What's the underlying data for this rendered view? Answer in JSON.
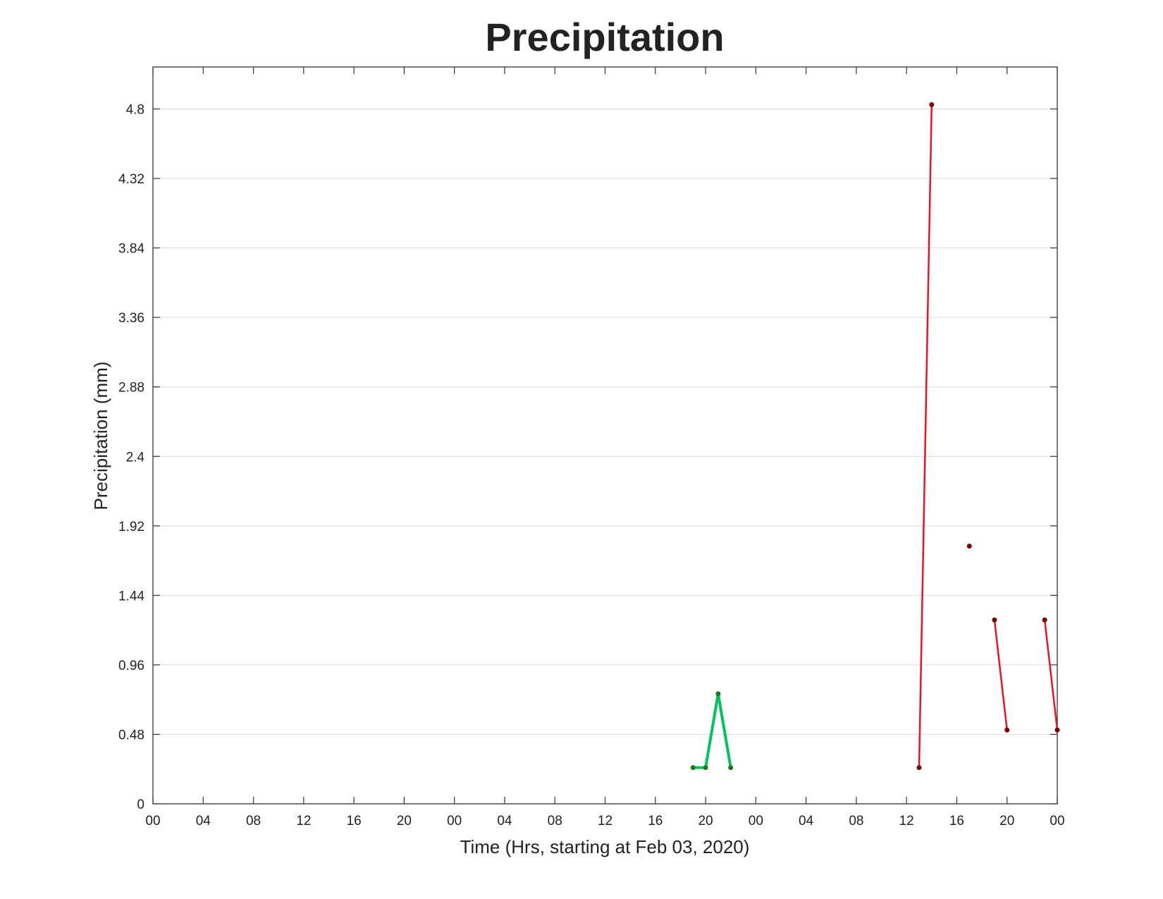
{
  "chart_data": {
    "type": "line",
    "title": "Precipitation",
    "xlabel": "Time (Hrs, starting at Feb 03, 2020)",
    "ylabel": "Precipitation (mm)",
    "xlim": [
      0,
      72
    ],
    "ylim": [
      0,
      5.09
    ],
    "xticks": [
      {
        "value": 0,
        "label": "00"
      },
      {
        "value": 4,
        "label": "04"
      },
      {
        "value": 8,
        "label": "08"
      },
      {
        "value": 12,
        "label": "12"
      },
      {
        "value": 16,
        "label": "16"
      },
      {
        "value": 20,
        "label": "20"
      },
      {
        "value": 24,
        "label": "00"
      },
      {
        "value": 28,
        "label": "04"
      },
      {
        "value": 32,
        "label": "08"
      },
      {
        "value": 36,
        "label": "12"
      },
      {
        "value": 40,
        "label": "16"
      },
      {
        "value": 44,
        "label": "20"
      },
      {
        "value": 48,
        "label": "00"
      },
      {
        "value": 52,
        "label": "04"
      },
      {
        "value": 56,
        "label": "08"
      },
      {
        "value": 60,
        "label": "12"
      },
      {
        "value": 64,
        "label": "16"
      },
      {
        "value": 68,
        "label": "20"
      },
      {
        "value": 72,
        "label": "00"
      }
    ],
    "yticks": [
      0,
      0.48,
      0.96,
      1.44,
      1.92,
      2.4,
      2.88,
      3.36,
      3.84,
      4.32,
      4.8
    ],
    "grid": "y",
    "series": [
      {
        "color": "#00c35a",
        "marker_color": "#1a7a1a",
        "line_width": 4,
        "x": [
          43,
          44,
          45,
          46
        ],
        "values": [
          0.25,
          0.25,
          0.76,
          0.25
        ]
      },
      {
        "color": "#e8141e",
        "marker_color": "#7a0000",
        "line_width": 2.5,
        "x": [
          61,
          62,
          63,
          65,
          66,
          67,
          68,
          69,
          71,
          72
        ],
        "values": [
          0.25,
          4.83,
          null,
          1.78,
          null,
          1.27,
          0.51,
          null,
          1.27,
          0.51
        ]
      }
    ]
  }
}
